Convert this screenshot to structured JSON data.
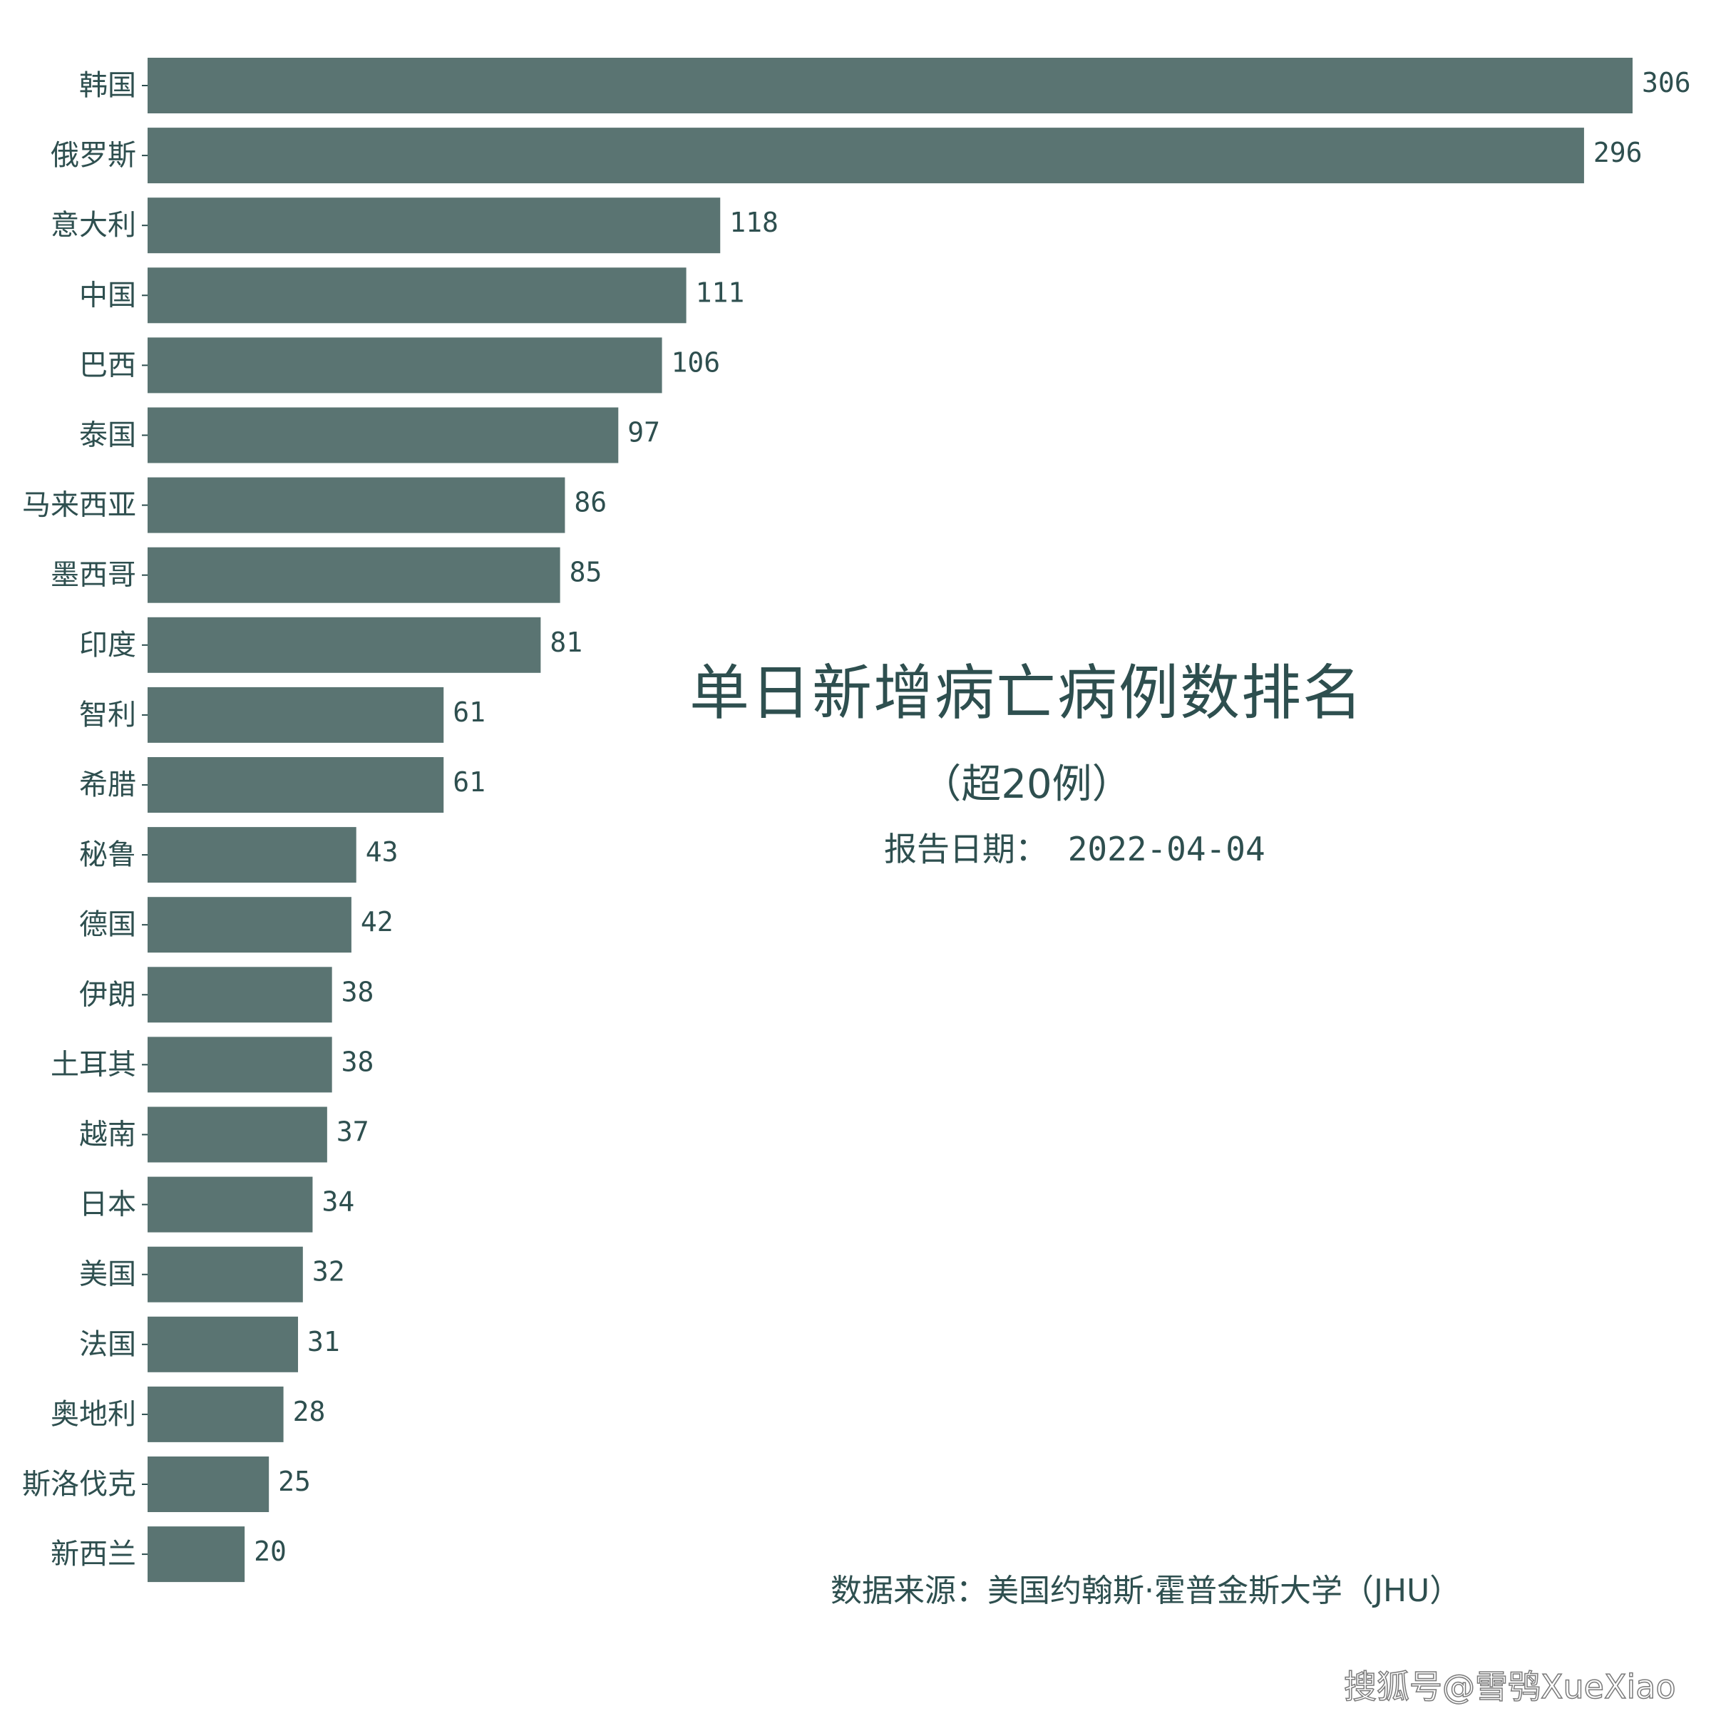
{
  "chart_data": {
    "type": "bar",
    "orientation": "horizontal",
    "title": "单日新增病亡病例数排名",
    "subtitle": "（超20例）",
    "report_date": "报告日期： 2022-04-04",
    "source": "数据来源：美国约翰斯·霍普金斯大学（JHU）",
    "categories": [
      "韩国",
      "俄罗斯",
      "意大利",
      "中国",
      "巴西",
      "泰国",
      "马来西亚",
      "墨西哥",
      "印度",
      "智利",
      "希腊",
      "秘鲁",
      "德国",
      "伊朗",
      "土耳其",
      "越南",
      "日本",
      "美国",
      "法国",
      "奥地利",
      "斯洛伐克",
      "新西兰"
    ],
    "values": [
      306,
      296,
      118,
      111,
      106,
      97,
      86,
      85,
      81,
      61,
      61,
      43,
      42,
      38,
      38,
      37,
      34,
      32,
      31,
      28,
      25,
      20
    ],
    "xlim": [
      0,
      306
    ],
    "grid": false,
    "bar_color": "#5a7472",
    "text_color": "#2e4f4f"
  },
  "watermark": "搜狐号@雪鸮XueXiao"
}
